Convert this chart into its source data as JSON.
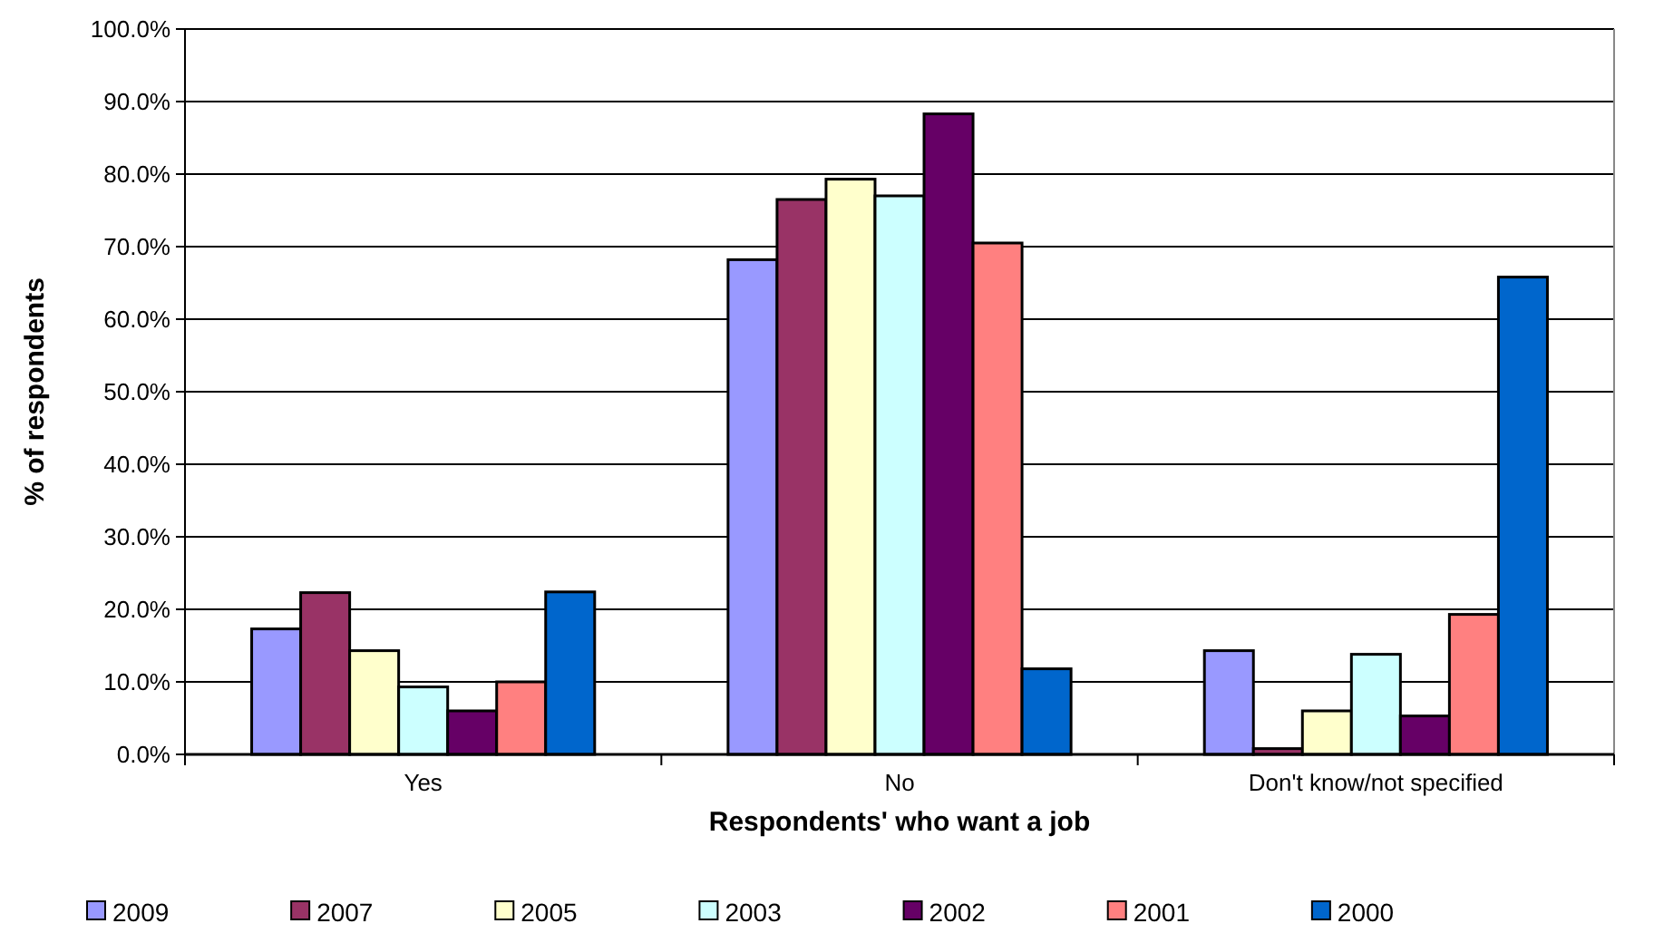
{
  "chart_data": {
    "type": "bar",
    "xlabel": "Respondents' who want a job",
    "ylabel": "% of respondents",
    "categories": [
      "Yes",
      "No",
      "Don't know/not specified"
    ],
    "series": [
      {
        "name": "2009",
        "color": "#9999ff",
        "values": [
          17.3,
          68.2,
          14.3
        ]
      },
      {
        "name": "2007",
        "color": "#993366",
        "values": [
          22.3,
          76.5,
          0.8
        ]
      },
      {
        "name": "2005",
        "color": "#ffffcc",
        "values": [
          14.3,
          79.3,
          6.0
        ]
      },
      {
        "name": "2003",
        "color": "#ccffff",
        "values": [
          9.3,
          77.0,
          13.8
        ]
      },
      {
        "name": "2002",
        "color": "#660066",
        "values": [
          6.0,
          88.3,
          5.3
        ]
      },
      {
        "name": "2001",
        "color": "#ff8080",
        "values": [
          10.0,
          70.5,
          19.3
        ]
      },
      {
        "name": "2000",
        "color": "#0066cc",
        "values": [
          22.4,
          11.8,
          65.8
        ]
      }
    ],
    "ylim": [
      0,
      100
    ],
    "yticks": [
      {
        "value": 0,
        "label": "0.0%"
      },
      {
        "value": 10,
        "label": "10.0%"
      },
      {
        "value": 20,
        "label": "20.0%"
      },
      {
        "value": 30,
        "label": "30.0%"
      },
      {
        "value": 40,
        "label": "40.0%"
      },
      {
        "value": 50,
        "label": "50.0%"
      },
      {
        "value": 60,
        "label": "60.0%"
      },
      {
        "value": 70,
        "label": "70.0%"
      },
      {
        "value": 80,
        "label": "80.0%"
      },
      {
        "value": 90,
        "label": "90.0%"
      },
      {
        "value": 100,
        "label": "100.0%"
      }
    ],
    "grid": "y",
    "legend": "bottom"
  }
}
